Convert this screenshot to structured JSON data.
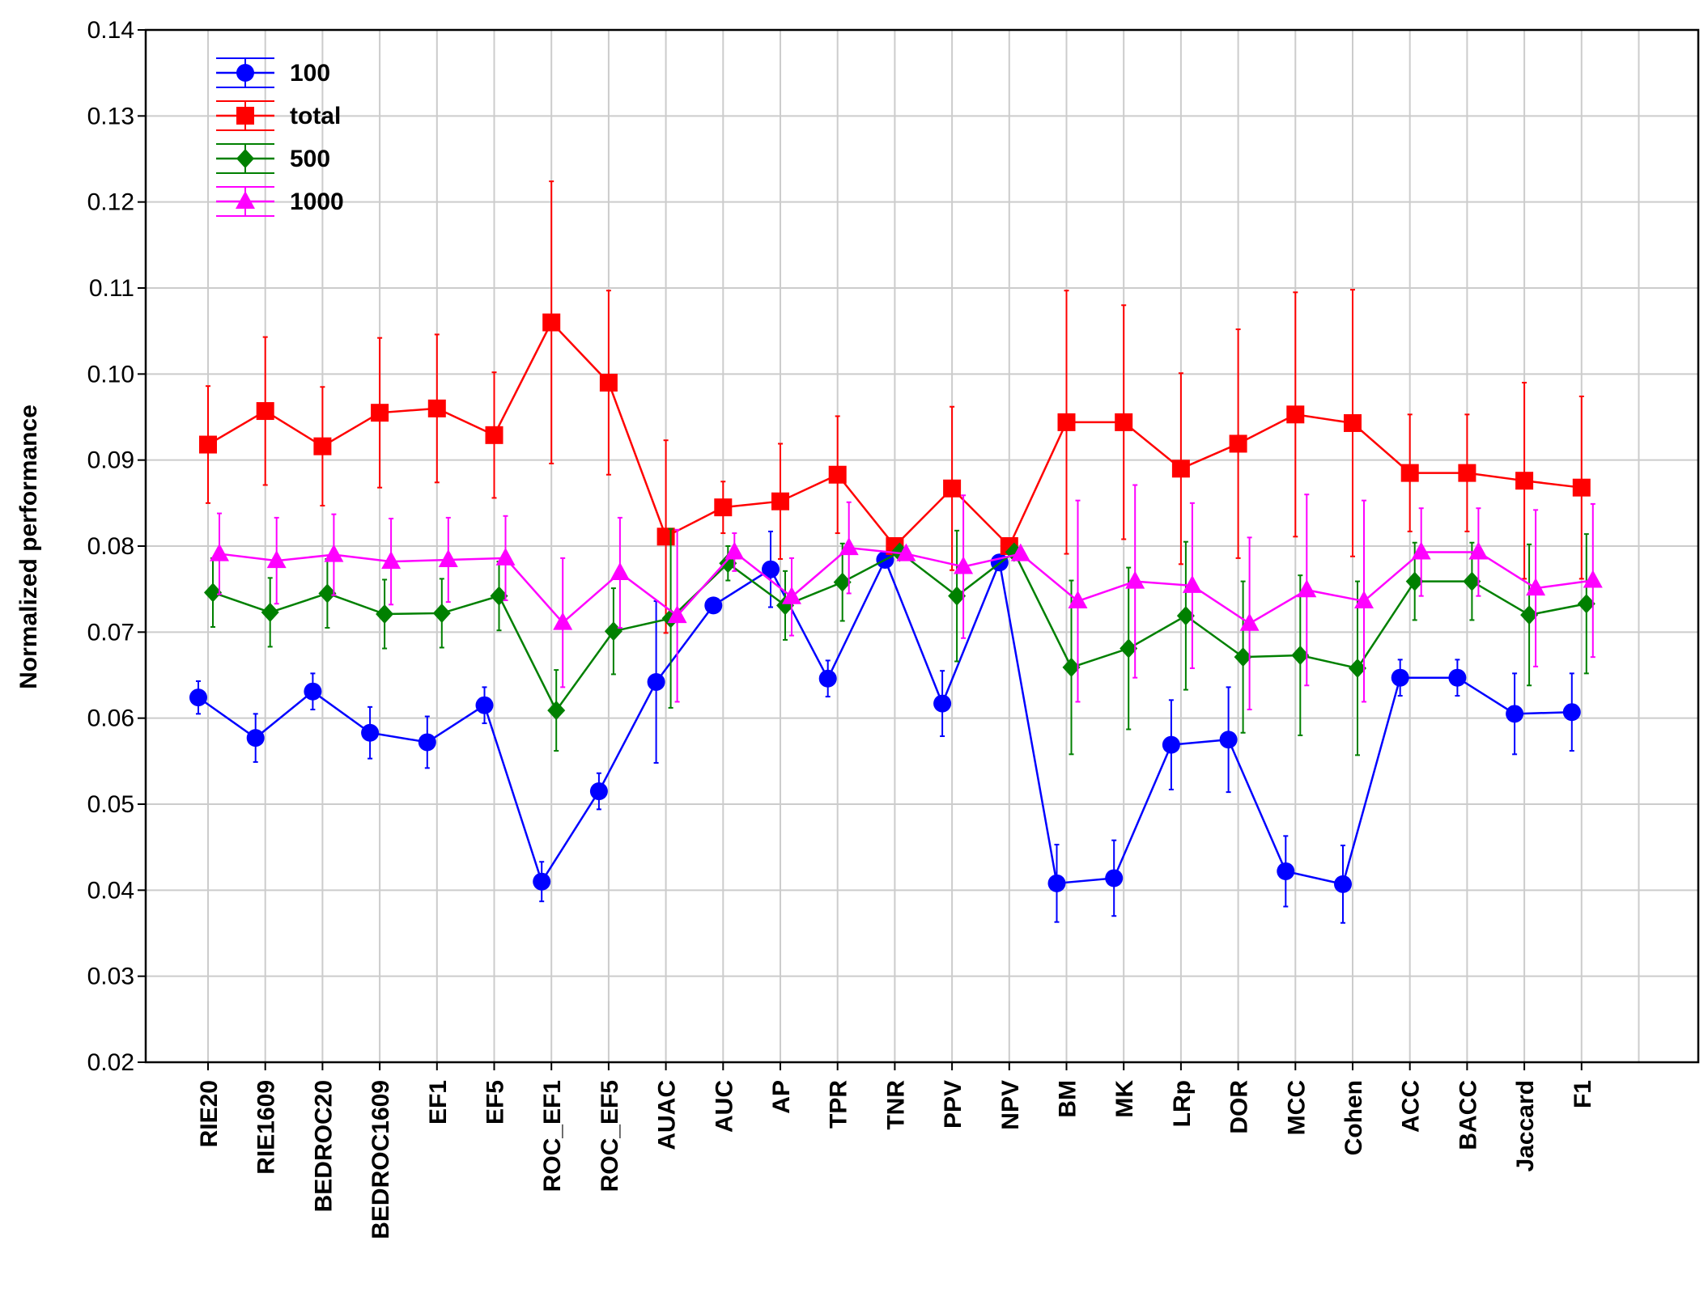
{
  "chart_data": {
    "type": "line",
    "title": "",
    "xlabel": "",
    "ylabel": "Normalized performance",
    "ylim": [
      0.02,
      0.14
    ],
    "yticks": [
      "0.02",
      "0.03",
      "0.04",
      "0.05",
      "0.06",
      "0.07",
      "0.08",
      "0.09",
      "0.10",
      "0.11",
      "0.12",
      "0.13",
      "0.14"
    ],
    "grid": true,
    "legend_position": "top-left",
    "categories": [
      "RIE20",
      "RIE1609",
      "BEDROC20",
      "BEDROC1609",
      "EF1",
      "EF5",
      "ROC_EF1",
      "ROC_EF5",
      "AUAC",
      "AUC",
      "AP",
      "TPR",
      "TNR",
      "PPV",
      "NPV",
      "BM",
      "MK",
      "LRp",
      "DOR",
      "MCC",
      "Cohen",
      "ACC",
      "BACC",
      "Jaccard",
      "F1"
    ],
    "series": [
      {
        "name": "100",
        "color": "#0000ff",
        "marker": "circle",
        "values": [
          0.0624,
          0.0577,
          0.0631,
          0.0583,
          0.0572,
          0.0615,
          0.041,
          0.0515,
          0.0642,
          0.0731,
          0.0773,
          0.0646,
          0.0784,
          0.0617,
          0.0781,
          0.0408,
          0.0414,
          0.0569,
          0.0575,
          0.0422,
          0.0407,
          0.0647,
          0.0647,
          0.0605,
          0.0607
        ],
        "errors": [
          0.0019,
          0.0028,
          0.0021,
          0.003,
          0.003,
          0.0021,
          0.0023,
          0.0021,
          0.0094,
          0.0,
          0.0044,
          0.0021,
          0.0,
          0.0038,
          0.0,
          0.0045,
          0.0044,
          0.0052,
          0.0061,
          0.0041,
          0.0045,
          0.0021,
          0.0021,
          0.0047,
          0.0045
        ]
      },
      {
        "name": "total",
        "color": "#ff0000",
        "marker": "square",
        "values": [
          0.0918,
          0.0957,
          0.0916,
          0.0955,
          0.096,
          0.0929,
          0.106,
          0.099,
          0.0811,
          0.0845,
          0.0852,
          0.0883,
          0.08,
          0.0867,
          0.08,
          0.0944,
          0.0944,
          0.089,
          0.0919,
          0.0953,
          0.0943,
          0.0885,
          0.0885,
          0.0876,
          0.0868
        ],
        "errors": [
          0.0068,
          0.0086,
          0.0069,
          0.0087,
          0.0086,
          0.0073,
          0.0164,
          0.0107,
          0.0112,
          0.003,
          0.0067,
          0.0068,
          0.0,
          0.0095,
          0.0,
          0.0153,
          0.0136,
          0.0111,
          0.0133,
          0.0142,
          0.0155,
          0.0068,
          0.0068,
          0.0114,
          0.0106
        ]
      },
      {
        "name": "500",
        "color": "#008000",
        "marker": "diamond",
        "values": [
          0.0746,
          0.0723,
          0.0745,
          0.0721,
          0.0722,
          0.0742,
          0.0609,
          0.0701,
          0.0716,
          0.078,
          0.0731,
          0.0758,
          0.0793,
          0.0742,
          0.0793,
          0.0659,
          0.0681,
          0.0719,
          0.0671,
          0.0673,
          0.0658,
          0.0759,
          0.0759,
          0.072,
          0.0733
        ],
        "errors": [
          0.004,
          0.004,
          0.004,
          0.004,
          0.004,
          0.004,
          0.0047,
          0.005,
          0.0104,
          0.002,
          0.004,
          0.0045,
          0.0,
          0.0076,
          0.0,
          0.0101,
          0.0094,
          0.0086,
          0.0088,
          0.0093,
          0.0101,
          0.0045,
          0.0045,
          0.0082,
          0.0081
        ]
      },
      {
        "name": "1000",
        "color": "#ff00ff",
        "marker": "triangle",
        "values": [
          0.0791,
          0.0783,
          0.079,
          0.0782,
          0.0784,
          0.0786,
          0.0711,
          0.0769,
          0.0719,
          0.0793,
          0.0741,
          0.0798,
          0.0791,
          0.0776,
          0.0791,
          0.0736,
          0.0759,
          0.0754,
          0.071,
          0.0749,
          0.0736,
          0.0793,
          0.0793,
          0.0751,
          0.076
        ],
        "errors": [
          0.0047,
          0.005,
          0.0047,
          0.005,
          0.0049,
          0.0049,
          0.0075,
          0.0064,
          0.01,
          0.0022,
          0.0045,
          0.0053,
          0.0,
          0.0083,
          0.0,
          0.0117,
          0.0112,
          0.0096,
          0.01,
          0.0111,
          0.0117,
          0.0051,
          0.0051,
          0.0091,
          0.0089
        ]
      }
    ]
  }
}
